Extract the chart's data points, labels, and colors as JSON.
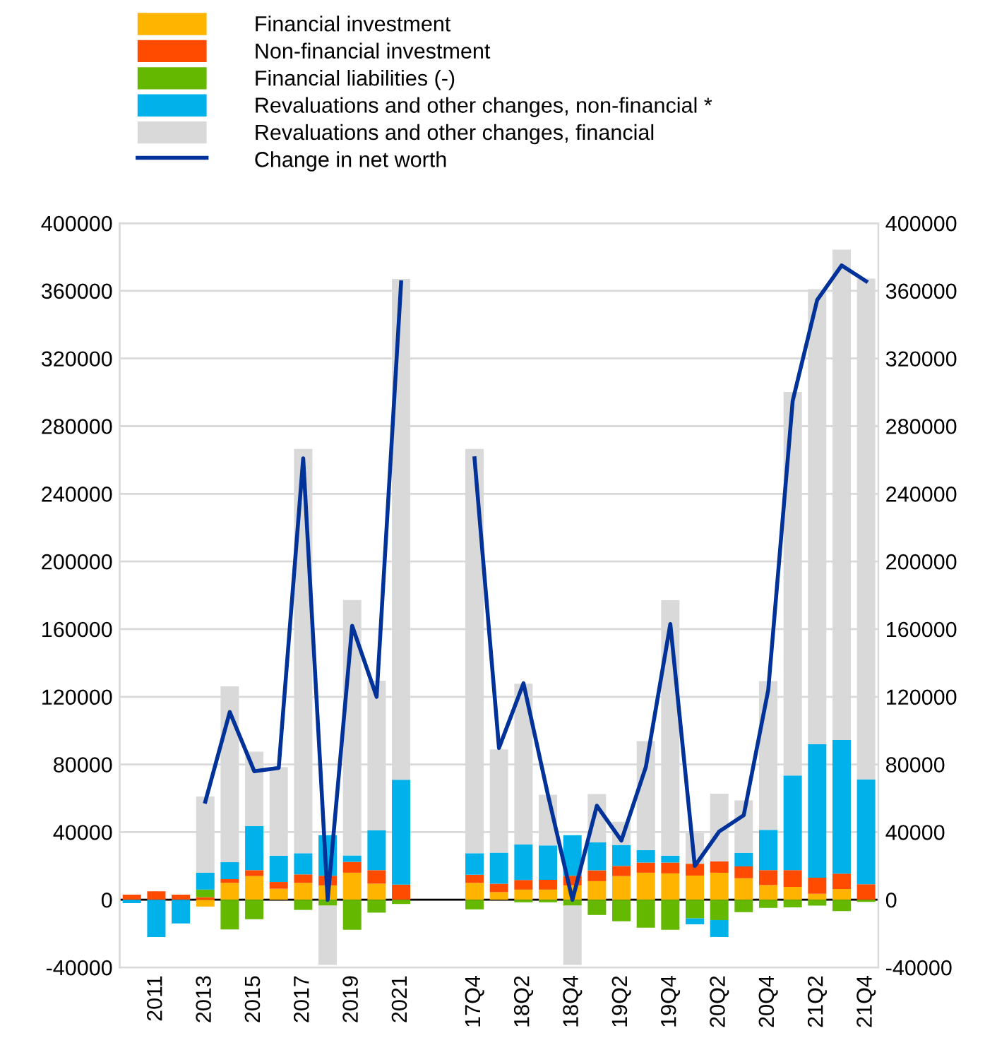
{
  "chart_data": {
    "type": "bar",
    "stacked": true,
    "categories": [
      null,
      "2011",
      null,
      "2013",
      null,
      "2015",
      null,
      "2017",
      null,
      "2019",
      null,
      "2021",
      null,
      null,
      "17Q4",
      null,
      "18Q2",
      null,
      "18Q4",
      null,
      "19Q2",
      null,
      "19Q4",
      null,
      "20Q2",
      null,
      "20Q4",
      null,
      "21Q2",
      null,
      "21Q4"
    ],
    "series": [
      {
        "name": "Financial investment",
        "color": "#ffb400",
        "values": [
          0,
          0,
          0,
          -4000,
          10000,
          14000,
          6500,
          10000,
          8500,
          16000,
          9500,
          0,
          null,
          null,
          10000,
          4500,
          6000,
          6000,
          8500,
          11000,
          14000,
          16000,
          15600,
          14300,
          16000,
          12700,
          8600,
          7600,
          3500,
          6400,
          0
        ]
      },
      {
        "name": "Non-financial investment",
        "color": "#ff4b00",
        "values": [
          3000,
          5000,
          3000,
          1500,
          2200,
          3500,
          4000,
          5000,
          5700,
          6400,
          8000,
          9000,
          null,
          null,
          4800,
          5000,
          5700,
          5800,
          5700,
          6400,
          6000,
          6000,
          6400,
          7000,
          6700,
          7000,
          8900,
          9900,
          9500,
          9000,
          9200
        ]
      },
      {
        "name": "Financial liabilities (-)",
        "color": "#65b800",
        "values": [
          0,
          0,
          0,
          4500,
          -17500,
          -11500,
          0,
          -6000,
          -3500,
          -17800,
          -7600,
          -2500,
          null,
          null,
          -5700,
          0,
          -1500,
          -1500,
          -3500,
          -9000,
          -12700,
          -16500,
          -17800,
          -11000,
          -12000,
          -7300,
          -4800,
          -4500,
          -3500,
          -6700,
          -1300
        ]
      },
      {
        "name": "Revaluations and other changes, non-financial *",
        "color": "#00b1ea",
        "values": [
          -2000,
          -22000,
          -14000,
          10000,
          10000,
          26000,
          15500,
          12500,
          24000,
          3800,
          23500,
          62000,
          null,
          null,
          12700,
          18400,
          21000,
          20300,
          24000,
          16500,
          12400,
          7300,
          4100,
          -3500,
          -10000,
          8000,
          23800,
          56000,
          79000,
          79000,
          62000
        ]
      },
      {
        "name": "Revaluations and other changes, financial",
        "color": "#d9d9d9",
        "values": [
          0,
          0,
          0,
          45000,
          104000,
          44000,
          52500,
          239000,
          -35000,
          151000,
          88500,
          296000,
          null,
          null,
          239000,
          61000,
          95000,
          30000,
          -35000,
          28600,
          13700,
          64500,
          151000,
          18000,
          40000,
          31000,
          88000,
          226700,
          269000,
          290000,
          296000
        ]
      },
      {
        "name": "Change in net worth",
        "type": "line",
        "color": "#003299",
        "values": [
          null,
          null,
          null,
          58000,
          111000,
          76000,
          78000,
          261000,
          0,
          162000,
          120000,
          365000,
          null,
          null,
          261000,
          89700,
          128000,
          62000,
          0,
          55600,
          35000,
          78500,
          163000,
          20000,
          40400,
          50000,
          124000,
          295000,
          354600,
          375000,
          365700
        ]
      }
    ],
    "ylim": [
      -40000,
      400000
    ],
    "yticks": [
      -40000,
      0,
      40000,
      80000,
      120000,
      160000,
      200000,
      240000,
      280000,
      320000,
      360000,
      400000
    ],
    "y2lim": [
      -40000,
      400000
    ],
    "y2ticks": [
      -40000,
      0,
      40000,
      80000,
      120000,
      160000,
      200000,
      240000,
      280000,
      320000,
      360000,
      400000
    ],
    "grid": "y",
    "legend": "top"
  }
}
